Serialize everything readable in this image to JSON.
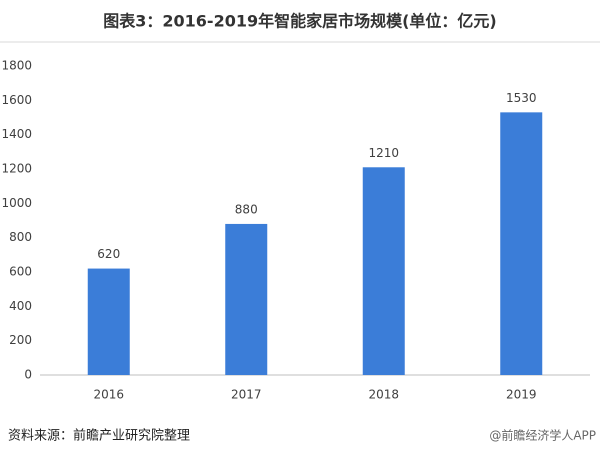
{
  "chart_data": {
    "type": "bar",
    "title": "图表3：2016-2019年智能家居市场规模(单位：亿元)",
    "categories": [
      "2016",
      "2017",
      "2018",
      "2019"
    ],
    "values": [
      620,
      880,
      1210,
      1530
    ],
    "color": "#3b7dd8",
    "ylim": [
      0,
      1800
    ],
    "yticks": [
      0,
      200,
      400,
      600,
      800,
      1000,
      1200,
      1400,
      1600,
      1800
    ],
    "grid": false,
    "source": "资料来源：前瞻产业研究院整理",
    "credit": "@前瞻经济学人APP"
  }
}
